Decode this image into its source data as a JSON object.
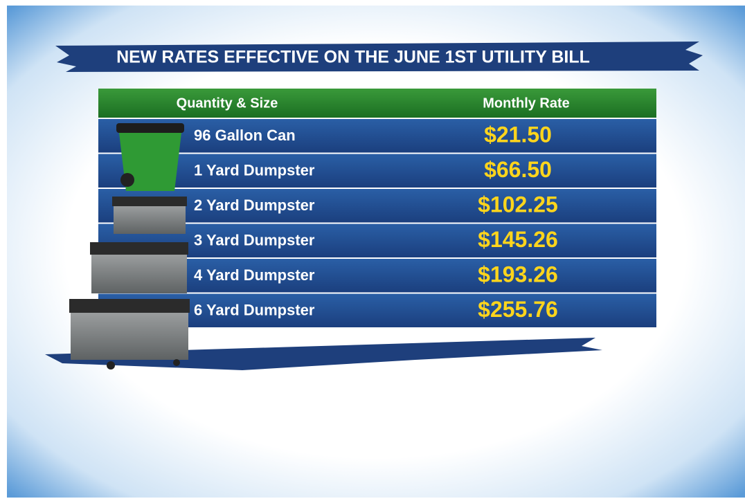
{
  "header": {
    "title": "NEW RATES EFFECTIVE ON THE JUNE 1ST UTILITY BILL"
  },
  "table": {
    "columns": [
      "Quantity & Size",
      "Monthly Rate"
    ],
    "rows": [
      [
        "96 Gallon Can",
        "$21.50"
      ],
      [
        "1 Yard Dumpster",
        "$66.50"
      ],
      [
        "2 Yard Dumpster",
        "$102.25"
      ],
      [
        "3 Yard Dumpster",
        "$145.26"
      ],
      [
        "4 Yard Dumpster",
        "$193.26"
      ],
      [
        "6 Yard Dumpster",
        "$255.76"
      ]
    ]
  }
}
